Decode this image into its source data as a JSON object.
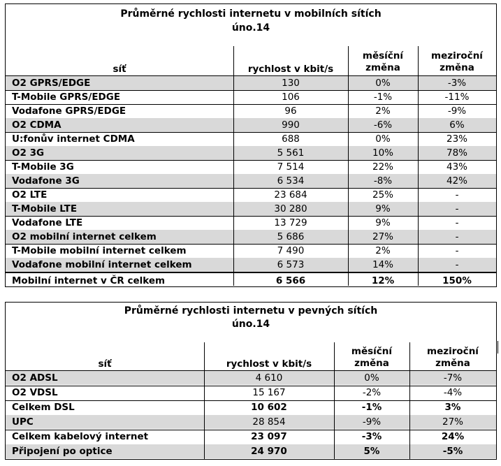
{
  "mobile": {
    "title_line1": "Průměrné rychlosti internetu v mobilních sítích",
    "title_line2": "úno.14",
    "headers": {
      "network": "síť",
      "speed": "rychlost v kbit/s",
      "monthly_l1": "měsíční",
      "monthly_l2": "změna",
      "yearly_l1": "meziroční",
      "yearly_l2": "změna"
    },
    "rows": [
      {
        "name": "O2 GPRS/EDGE",
        "speed": "130",
        "monthly": "0%",
        "yearly": "-3%"
      },
      {
        "name": "T-Mobile GPRS/EDGE",
        "speed": "106",
        "monthly": "-1%",
        "yearly": "-11%"
      },
      {
        "name": "Vodafone GPRS/EDGE",
        "speed": "96",
        "monthly": "2%",
        "yearly": "-9%"
      },
      {
        "name": "O2 CDMA",
        "speed": "990",
        "monthly": "-6%",
        "yearly": "6%"
      },
      {
        "name": "U:fonův internet CDMA",
        "speed": "688",
        "monthly": "0%",
        "yearly": "23%"
      },
      {
        "name": "O2 3G",
        "speed": "5 561",
        "monthly": "10%",
        "yearly": "78%"
      },
      {
        "name": "T-Mobile 3G",
        "speed": "7 514",
        "monthly": "22%",
        "yearly": "43%"
      },
      {
        "name": "Vodafone 3G",
        "speed": "6 534",
        "monthly": "-8%",
        "yearly": "42%"
      },
      {
        "name": "O2 LTE",
        "speed": "23 684",
        "monthly": "25%",
        "yearly": "-"
      },
      {
        "name": "T-Mobile LTE",
        "speed": "30 280",
        "monthly": "9%",
        "yearly": "-"
      },
      {
        "name": "Vodafone LTE",
        "speed": "13 729",
        "monthly": "9%",
        "yearly": "-"
      },
      {
        "name": "O2 mobilní internet celkem",
        "speed": "5 686",
        "monthly": "27%",
        "yearly": "-"
      },
      {
        "name": "T-Mobile mobilní internet celkem",
        "speed": "7 490",
        "monthly": "2%",
        "yearly": "-"
      },
      {
        "name": "Vodafone mobilní internet celkem",
        "speed": "6 573",
        "monthly": "14%",
        "yearly": "-"
      }
    ],
    "total": {
      "name": "Mobilní internet v ČR celkem",
      "speed": "6 566",
      "monthly": "12%",
      "yearly": "150%"
    }
  },
  "fixed": {
    "title_line1": "Průměrné rychlosti internetu v pevných sítích",
    "title_line2": "úno.14",
    "headers": {
      "network": "síť",
      "speed": "rychlost v kbit/s",
      "monthly_l1": "měsíční",
      "monthly_l2": "změna",
      "yearly_l1": "meziroční",
      "yearly_l2": "změna"
    },
    "rows": [
      {
        "name": "O2 ADSL",
        "speed": "4 610",
        "monthly": "0%",
        "yearly": "-7%"
      },
      {
        "name": "O2 VDSL",
        "speed": "15 167",
        "monthly": "-2%",
        "yearly": "-4%"
      },
      {
        "name": "Celkem DSL",
        "speed": "10 602",
        "monthly": "-1%",
        "yearly": "3%"
      },
      {
        "name": "UPC",
        "speed": "28 854",
        "monthly": "-9%",
        "yearly": "27%"
      },
      {
        "name": "Celkem kabelový internet",
        "speed": "23 097",
        "monthly": "-3%",
        "yearly": "24%"
      },
      {
        "name": "Připojení po optice",
        "speed": "24 970",
        "monthly": "5%",
        "yearly": "-5%"
      }
    ]
  },
  "colors": {
    "shade": "#d9d9d9",
    "border": "#000000"
  }
}
